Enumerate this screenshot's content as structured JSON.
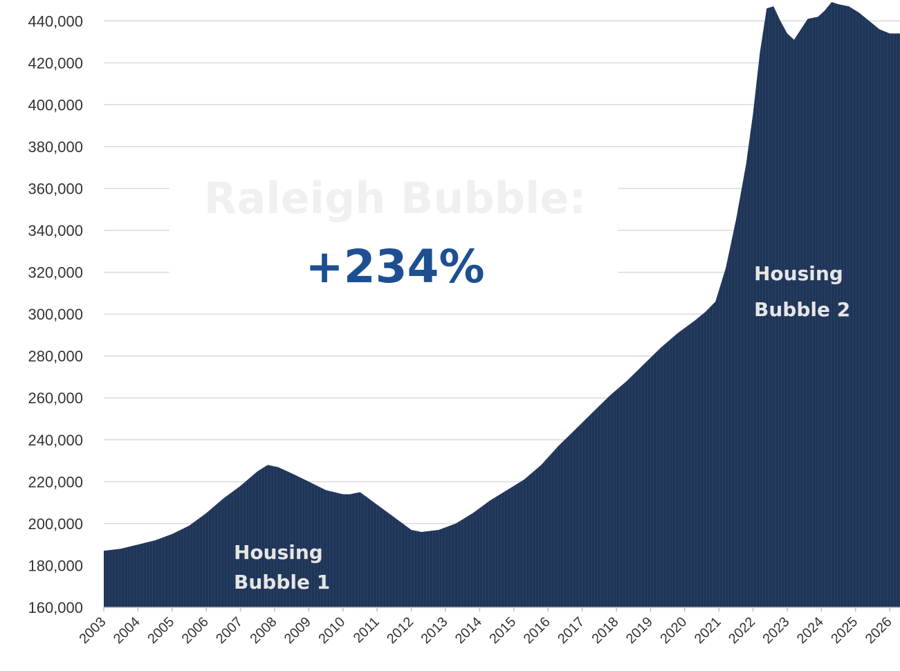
{
  "chart_data": {
    "type": "area",
    "title": "",
    "xlabel": "",
    "ylabel": "",
    "ylim": [
      160000,
      450000
    ],
    "yticks": [
      160000,
      180000,
      200000,
      220000,
      240000,
      260000,
      280000,
      300000,
      320000,
      340000,
      360000,
      380000,
      400000,
      420000,
      440000
    ],
    "ytick_labels": [
      "160,000",
      "180,000",
      "200,000",
      "220,000",
      "240,000",
      "260,000",
      "280,000",
      "300,000",
      "320,000",
      "340,000",
      "360,000",
      "380,000",
      "400,000",
      "420,000",
      "440,000"
    ],
    "xlim": [
      2003,
      2026.3
    ],
    "xtick_labels": [
      "2003",
      "2004",
      "2005",
      "2006",
      "2007",
      "2008",
      "2009",
      "2010",
      "2011",
      "2012",
      "2013",
      "2014",
      "2015",
      "2016",
      "2017",
      "2018",
      "2019",
      "2020",
      "2021",
      "2022",
      "2023",
      "2024",
      "2025",
      "2026"
    ],
    "grid": true,
    "colors": {
      "area": "#1f3557",
      "accent": "#1d4f91"
    },
    "series": [
      {
        "x": [
          2003.0,
          2003.5,
          2004.0,
          2004.5,
          2005.0,
          2005.5,
          2006.0,
          2006.5,
          2007.0,
          2007.5,
          2007.8,
          2008.1,
          2008.5,
          2009.0,
          2009.5,
          2010.0,
          2010.2,
          2010.5,
          2011.0,
          2011.5,
          2012.0,
          2012.3,
          2012.8,
          2013.3,
          2013.8,
          2014.3,
          2014.8,
          2015.3,
          2015.8,
          2016.3,
          2016.8,
          2017.3,
          2017.8,
          2018.3,
          2018.8,
          2019.3,
          2019.8,
          2020.3,
          2020.6,
          2020.9,
          2021.2,
          2021.5,
          2021.8,
          2022.0,
          2022.2,
          2022.4,
          2022.6,
          2022.8,
          2023.0,
          2023.2,
          2023.4,
          2023.6,
          2023.9,
          2024.1,
          2024.3,
          2024.5,
          2024.8,
          2025.1,
          2025.4,
          2025.7,
          2026.0,
          2026.3
        ],
        "values": [
          187000,
          188000,
          190000,
          192000,
          195000,
          199000,
          205000,
          212000,
          218000,
          225000,
          228000,
          227000,
          224000,
          220000,
          216000,
          214000,
          214000,
          215000,
          209000,
          203000,
          197000,
          196000,
          197000,
          200000,
          205000,
          211000,
          216000,
          221000,
          228000,
          237000,
          245000,
          253000,
          261000,
          268000,
          276000,
          284000,
          291000,
          297000,
          301000,
          306000,
          322000,
          345000,
          372000,
          396000,
          425000,
          446000,
          447000,
          440000,
          434000,
          431000,
          436000,
          441000,
          442000,
          445000,
          449000,
          448000,
          447000,
          444000,
          440000,
          436000,
          434000,
          434000
        ]
      }
    ],
    "annotations": {
      "bubble1_line1": "Housing",
      "bubble1_line2": "Bubble 1",
      "bubble2_line1": "Housing",
      "bubble2_line2": "Bubble 2",
      "headline": "Raleigh Bubble:",
      "percent": "+234%"
    }
  }
}
